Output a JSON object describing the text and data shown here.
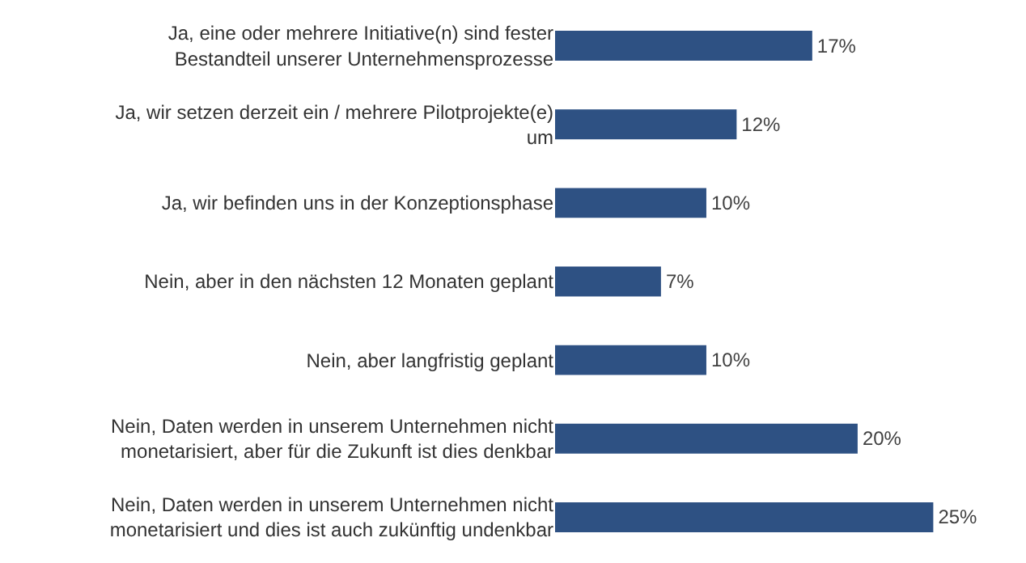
{
  "chart_data": {
    "type": "bar",
    "orientation": "horizontal",
    "categories": [
      "Ja, eine oder mehrere Initiative(n) sind fester Bestandteil unserer Unternehmensprozesse",
      "Ja, wir setzen derzeit ein / mehrere Pilotprojekte(e) um",
      "Ja, wir befinden uns in der Konzeptionsphase",
      "Nein, aber in den nächsten 12 Monaten geplant",
      "Nein, aber langfristig geplant",
      "Nein, Daten werden in unserem Unternehmen nicht monetarisiert, aber für die Zukunft ist dies denkbar",
      "Nein, Daten werden in unserem Unternehmen nicht monetarisiert und dies ist auch zukünftig undenkbar"
    ],
    "values": [
      17,
      12,
      10,
      7,
      10,
      20,
      25
    ],
    "value_labels": [
      "17%",
      "12%",
      "10%",
      "7%",
      "10%",
      "20%",
      "25%"
    ],
    "color": "#2e5183"
  }
}
